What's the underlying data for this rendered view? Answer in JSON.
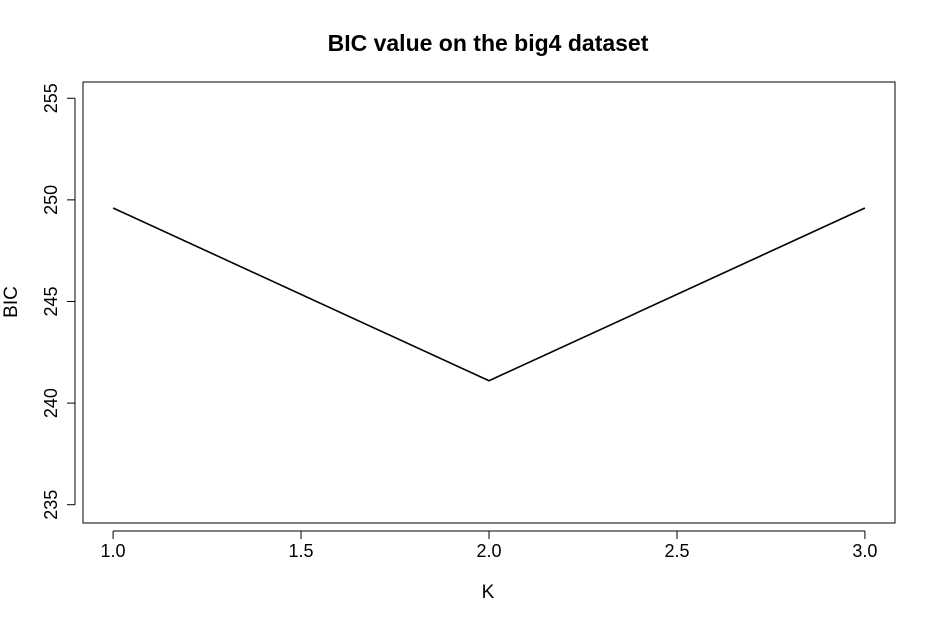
{
  "chart_data": {
    "type": "line",
    "title": "BIC value on the big4 dataset",
    "xlabel": "K",
    "ylabel": "BIC",
    "x": [
      1.0,
      2.0,
      3.0
    ],
    "series": [
      {
        "values": [
          249.6,
          241.1,
          249.6
        ],
        "color": "#000000"
      }
    ],
    "xlim": [
      0.92,
      3.08
    ],
    "ylim": [
      234.1,
      255.8
    ],
    "xticks": [
      1.0,
      1.5,
      2.0,
      2.5,
      3.0
    ],
    "xtick_labels": [
      "1.0",
      "1.5",
      "2.0",
      "2.5",
      "3.0"
    ],
    "yticks": [
      235,
      240,
      245,
      250,
      255
    ],
    "ytick_labels": [
      "235",
      "240",
      "245",
      "250",
      "255"
    ],
    "grid": false,
    "legend": "none"
  }
}
